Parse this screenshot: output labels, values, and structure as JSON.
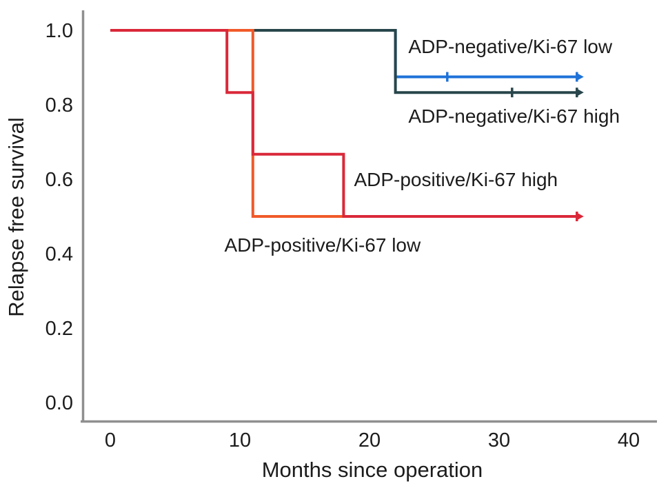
{
  "figure": {
    "background_color": "#ffffff",
    "axis_color": "#8f8f8f",
    "text_color": "#1c1c1c"
  },
  "chart_data": {
    "type": "line",
    "subtype": "kaplan_meier_step",
    "title": "",
    "xlabel": "Months since operation",
    "ylabel": "Relapse free survival",
    "xlim": [
      0,
      40
    ],
    "ylim": [
      0.0,
      1.0
    ],
    "xticks": [
      0,
      10,
      20,
      30,
      40
    ],
    "xtick_labels": [
      "0",
      "10",
      "20",
      "30",
      "40"
    ],
    "yticks": [
      1.0,
      0.8,
      0.6,
      0.4,
      0.2,
      0.0
    ],
    "ytick_labels": [
      "1.0",
      "0.8",
      "0.6",
      "0.4",
      "0.2",
      "0.0"
    ],
    "grid": false,
    "legend_position": "inline-annotations",
    "series": [
      {
        "name": "ADP-negative/Ki-67 low",
        "color": "#1f72d8",
        "steps": [
          [
            0,
            1.0
          ],
          [
            22,
            1.0
          ],
          [
            22,
            0.875
          ],
          [
            36,
            0.875
          ]
        ],
        "censor_marks": [
          [
            26,
            0.875
          ]
        ],
        "end_arrow": [
          36,
          0.875
        ]
      },
      {
        "name": "ADP-negative/Ki-67 high",
        "color": "#28464b",
        "steps": [
          [
            0,
            1.0
          ],
          [
            22,
            1.0
          ],
          [
            22,
            0.833
          ],
          [
            36,
            0.833
          ]
        ],
        "censor_marks": [
          [
            31,
            0.833
          ]
        ],
        "end_arrow": [
          36,
          0.833
        ]
      },
      {
        "name": "ADP-positive/Ki-67 low",
        "color": "#f15a29",
        "steps": [
          [
            0,
            1.0
          ],
          [
            11,
            1.0
          ],
          [
            11,
            0.5
          ],
          [
            36,
            0.5
          ]
        ],
        "censor_marks": [],
        "end_arrow": null
      },
      {
        "name": "ADP-positive/Ki-67 high",
        "color": "#da2839",
        "steps": [
          [
            0,
            1.0
          ],
          [
            9,
            1.0
          ],
          [
            9,
            0.833
          ],
          [
            11,
            0.833
          ],
          [
            11,
            0.667
          ],
          [
            18,
            0.667
          ],
          [
            18,
            0.5
          ],
          [
            36,
            0.5
          ]
        ],
        "censor_marks": [],
        "end_arrow": [
          36,
          0.5
        ]
      }
    ],
    "annotations": [
      {
        "text": "ADP-negative/Ki-67 low",
        "x": 23.0,
        "y": 0.957
      },
      {
        "text": "ADP-negative/Ki-67 high",
        "x": 23.0,
        "y": 0.77
      },
      {
        "text": "ADP-positive/Ki-67 high",
        "x": 18.8,
        "y": 0.6
      },
      {
        "text": "ADP-positive/Ki-67 low",
        "x": 8.8,
        "y": 0.424
      }
    ]
  }
}
